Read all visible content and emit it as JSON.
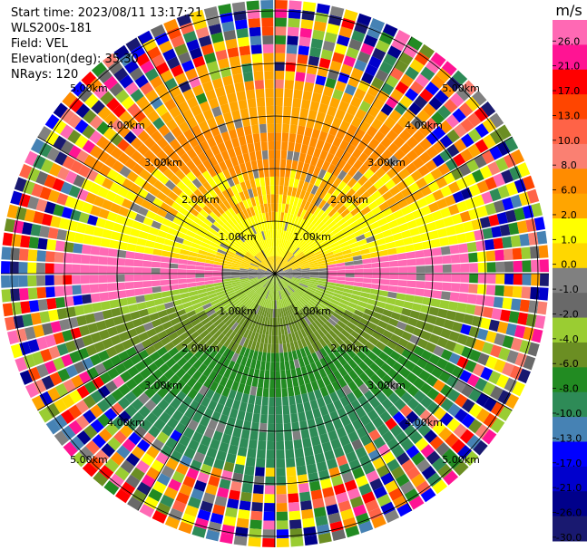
{
  "header": {
    "start_time": "Start time: 2023/08/11 13:17:21",
    "instrument": "WLS200s-181",
    "field": "Field: VEL",
    "elevation": "Elevation(deg): 35.30",
    "nrays": "NRays: 120"
  },
  "chart_data": {
    "type": "heatmap",
    "projection": "polar-ppi",
    "field": "VEL",
    "nrays": 120,
    "range_rings_km": [
      1.0,
      2.0,
      3.0,
      4.0,
      5.0
    ],
    "range_ring_labels": [
      "1.00km",
      "2.00km",
      "3.00km",
      "4.00km",
      "5.00km"
    ],
    "colorbar": {
      "unit": "m/s",
      "ticks": [
        "26.0",
        "21.0",
        "17.0",
        "13.0",
        "10.0",
        "8.0",
        "6.0",
        "2.0",
        "1.0",
        "0.0",
        "-1.0",
        "-2.0",
        "-4.0",
        "-6.0",
        "-8.0",
        "-10.0",
        "-13.0",
        "-17.0",
        "-21.0",
        "-26.0",
        "-30.0"
      ],
      "colors": [
        "#ff69b4",
        "#ff1493",
        "#ff0000",
        "#ff4500",
        "#ff6347",
        "#fa8072",
        "#ff8c00",
        "#ffa500",
        "#ffff00",
        "#ffd700",
        "#808080",
        "#696969",
        "#9acd32",
        "#6b8e23",
        "#228b22",
        "#2e8b57",
        "#4682b4",
        "#0000ff",
        "#0000cd",
        "#00008b",
        "#191970"
      ]
    }
  }
}
